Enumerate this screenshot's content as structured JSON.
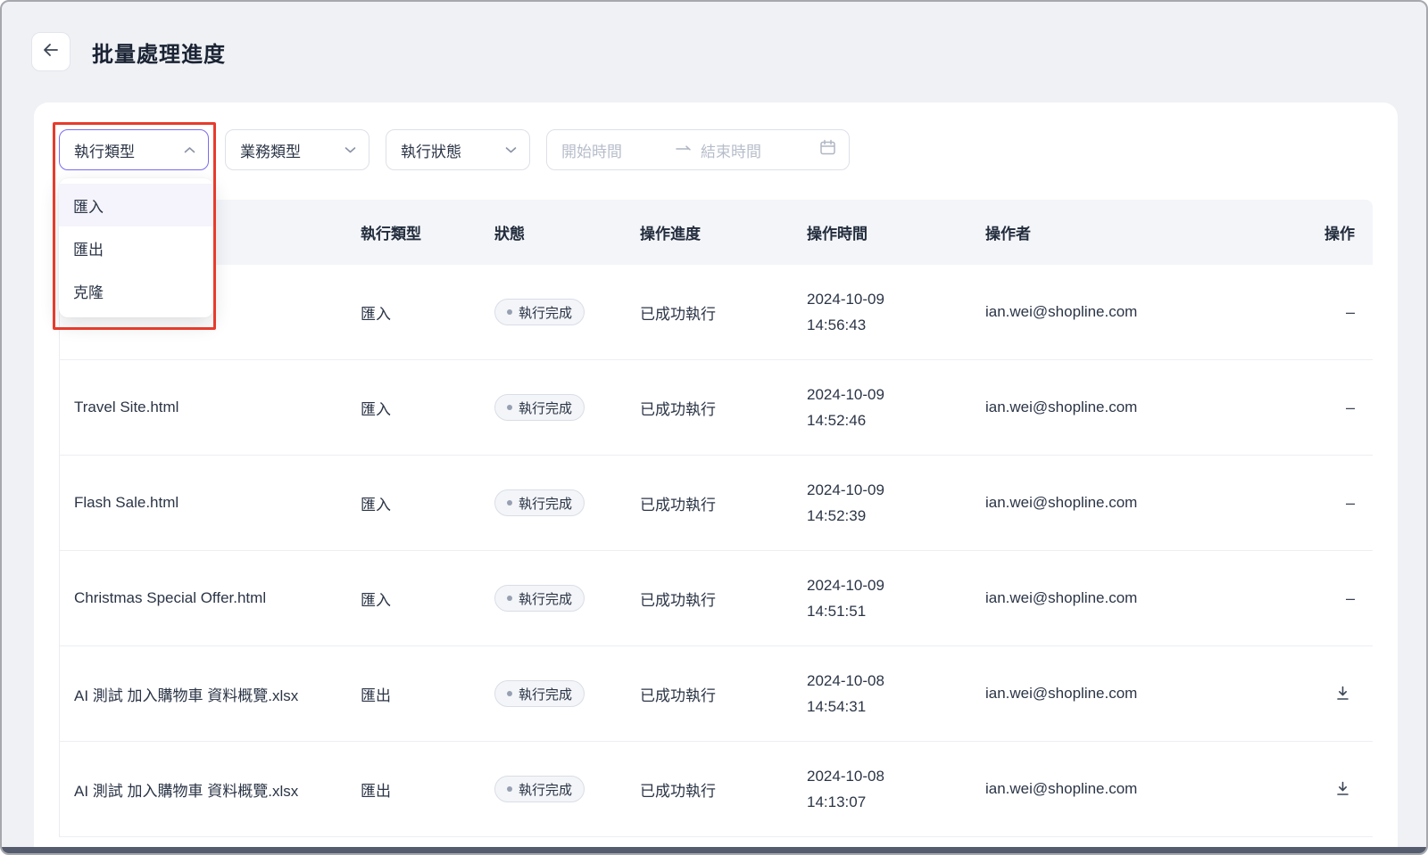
{
  "page": {
    "title": "批量處理進度"
  },
  "filters": {
    "exec_type": {
      "label": "執行類型",
      "state": "open",
      "options": [
        {
          "label": "匯入",
          "highlighted": true
        },
        {
          "label": "匯出",
          "highlighted": false
        },
        {
          "label": "克隆",
          "highlighted": false
        }
      ]
    },
    "business_type": {
      "label": "業務類型"
    },
    "exec_status": {
      "label": "執行狀態"
    },
    "date_range": {
      "start_placeholder": "開始時間",
      "end_placeholder": "結束時間"
    }
  },
  "table": {
    "columns": {
      "name": "",
      "exec_type": "執行類型",
      "status": "狀態",
      "progress": "操作進度",
      "time": "操作時間",
      "operator": "操作者",
      "action": "操作"
    },
    "action_dash": "–",
    "rows": [
      {
        "name": "",
        "exec_type": "匯入",
        "status": "執行完成",
        "progress": "已成功執行",
        "date": "2024-10-09",
        "time": "14:56:43",
        "operator": "ian.wei@shopline.com",
        "action": "dash"
      },
      {
        "name": "Travel Site.html",
        "exec_type": "匯入",
        "status": "執行完成",
        "progress": "已成功執行",
        "date": "2024-10-09",
        "time": "14:52:46",
        "operator": "ian.wei@shopline.com",
        "action": "dash"
      },
      {
        "name": "Flash Sale.html",
        "exec_type": "匯入",
        "status": "執行完成",
        "progress": "已成功執行",
        "date": "2024-10-09",
        "time": "14:52:39",
        "operator": "ian.wei@shopline.com",
        "action": "dash"
      },
      {
        "name": "Christmas Special Offer.html",
        "exec_type": "匯入",
        "status": "執行完成",
        "progress": "已成功執行",
        "date": "2024-10-09",
        "time": "14:51:51",
        "operator": "ian.wei@shopline.com",
        "action": "dash"
      },
      {
        "name": "AI 測試 加入購物車 資料概覽.xlsx",
        "exec_type": "匯出",
        "status": "執行完成",
        "progress": "已成功執行",
        "date": "2024-10-08",
        "time": "14:54:31",
        "operator": "ian.wei@shopline.com",
        "action": "download"
      },
      {
        "name": "AI 測試 加入購物車 資料概覽.xlsx",
        "exec_type": "匯出",
        "status": "執行完成",
        "progress": "已成功執行",
        "date": "2024-10-08",
        "time": "14:13:07",
        "operator": "ian.wei@shopline.com",
        "action": "download"
      }
    ]
  },
  "colors": {
    "accent_purple": "#7b6cf0",
    "annotation_red": "#e73b2c",
    "table_header_bg": "#f3f5f9",
    "page_bg": "#eff1f5",
    "text_primary": "#2b3546",
    "placeholder_grey": "#b7bdca"
  }
}
